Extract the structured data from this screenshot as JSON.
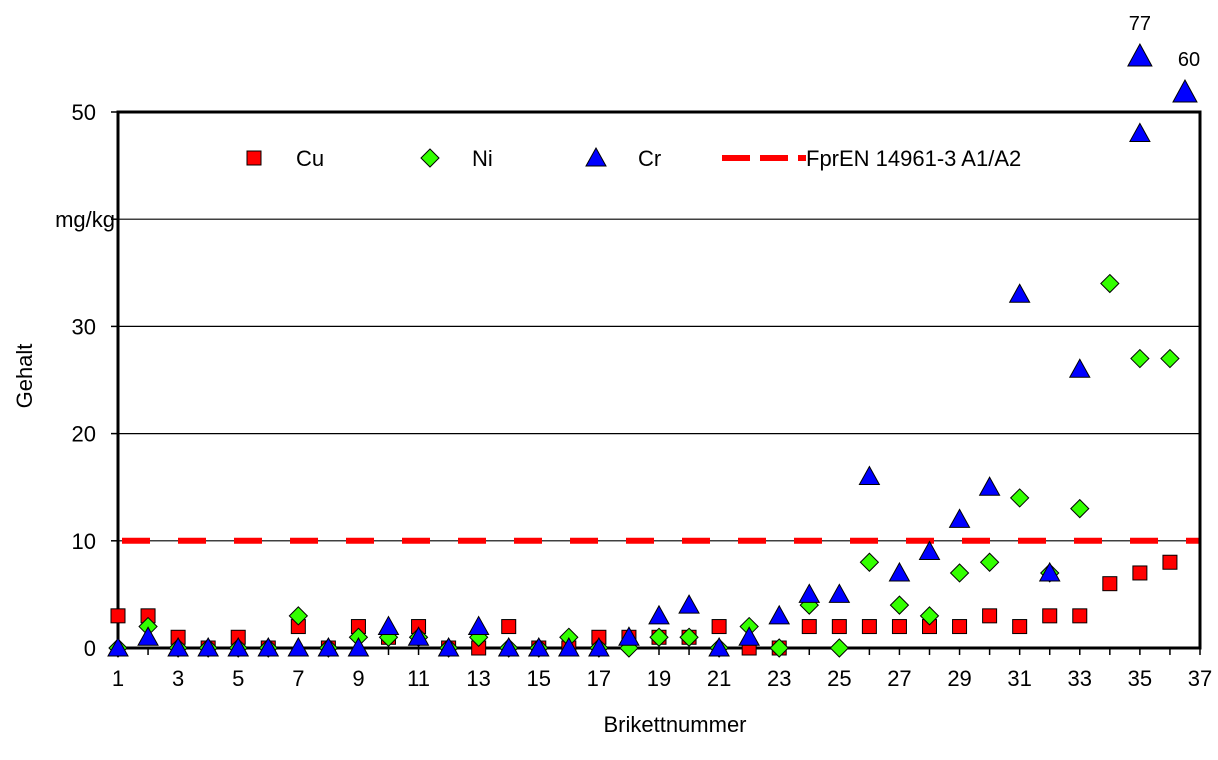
{
  "chart_data": {
    "type": "scatter",
    "title": "",
    "xlabel": "Brikettnummer",
    "ylabel": "Gehalt",
    "y_unit_label": "mg/kg",
    "xlim": [
      1,
      37
    ],
    "ylim": [
      0,
      50
    ],
    "x_ticks": [
      "1",
      "3",
      "5",
      "7",
      "9",
      "11",
      "13",
      "15",
      "17",
      "19",
      "21",
      "23",
      "25",
      "27",
      "29",
      "31",
      "33",
      "35",
      "37"
    ],
    "y_ticks": [
      "0",
      "10",
      "20",
      "30",
      "50"
    ],
    "grid": "horizontal",
    "legend_position": "top",
    "series": [
      {
        "name": "Cu",
        "marker": "square",
        "color": "#ff0000",
        "points": [
          [
            1,
            3
          ],
          [
            2,
            3
          ],
          [
            3,
            1
          ],
          [
            4,
            0
          ],
          [
            5,
            1
          ],
          [
            6,
            0
          ],
          [
            7,
            2
          ],
          [
            8,
            0
          ],
          [
            9,
            2
          ],
          [
            10,
            1
          ],
          [
            11,
            2
          ],
          [
            12,
            0
          ],
          [
            13,
            0
          ],
          [
            14,
            2
          ],
          [
            15,
            0
          ],
          [
            16,
            0
          ],
          [
            17,
            1
          ],
          [
            18,
            1
          ],
          [
            19,
            1
          ],
          [
            20,
            1
          ],
          [
            21,
            2
          ],
          [
            22,
            0
          ],
          [
            23,
            0
          ],
          [
            24,
            2
          ],
          [
            25,
            2
          ],
          [
            26,
            2
          ],
          [
            27,
            2
          ],
          [
            28,
            2
          ],
          [
            29,
            2
          ],
          [
            30,
            3
          ],
          [
            31,
            2
          ],
          [
            32,
            3
          ],
          [
            33,
            3
          ],
          [
            34,
            6
          ],
          [
            35,
            7
          ],
          [
            36,
            8
          ]
        ]
      },
      {
        "name": "Ni",
        "marker": "diamond",
        "color": "#33ff00",
        "points": [
          [
            1,
            0
          ],
          [
            2,
            2
          ],
          [
            3,
            0
          ],
          [
            4,
            0
          ],
          [
            5,
            0
          ],
          [
            6,
            0
          ],
          [
            7,
            3
          ],
          [
            8,
            0
          ],
          [
            9,
            1
          ],
          [
            10,
            1
          ],
          [
            11,
            1
          ],
          [
            12,
            0
          ],
          [
            13,
            1
          ],
          [
            14,
            0
          ],
          [
            15,
            0
          ],
          [
            16,
            1
          ],
          [
            17,
            0
          ],
          [
            18,
            0
          ],
          [
            19,
            1
          ],
          [
            20,
            1
          ],
          [
            21,
            0
          ],
          [
            22,
            2
          ],
          [
            23,
            0
          ],
          [
            24,
            4
          ],
          [
            25,
            0
          ],
          [
            26,
            8
          ],
          [
            27,
            4
          ],
          [
            28,
            3
          ],
          [
            29,
            7
          ],
          [
            30,
            8
          ],
          [
            31,
            14
          ],
          [
            32,
            7
          ],
          [
            33,
            13
          ],
          [
            34,
            34
          ],
          [
            35,
            27
          ],
          [
            36,
            27
          ]
        ]
      },
      {
        "name": "Cr",
        "marker": "triangle",
        "color": "#0000ff",
        "points": [
          [
            1,
            0
          ],
          [
            2,
            1
          ],
          [
            3,
            0
          ],
          [
            4,
            0
          ],
          [
            5,
            0
          ],
          [
            6,
            0
          ],
          [
            7,
            0
          ],
          [
            8,
            0
          ],
          [
            9,
            0
          ],
          [
            10,
            2
          ],
          [
            11,
            1
          ],
          [
            12,
            0
          ],
          [
            13,
            2
          ],
          [
            14,
            0
          ],
          [
            15,
            0
          ],
          [
            16,
            0
          ],
          [
            17,
            0
          ],
          [
            18,
            1
          ],
          [
            19,
            3
          ],
          [
            20,
            4
          ],
          [
            21,
            0
          ],
          [
            22,
            1
          ],
          [
            23,
            3
          ],
          [
            24,
            5
          ],
          [
            25,
            5
          ],
          [
            26,
            16
          ],
          [
            27,
            7
          ],
          [
            28,
            9
          ],
          [
            29,
            12
          ],
          [
            30,
            15
          ],
          [
            31,
            33
          ],
          [
            32,
            7
          ],
          [
            33,
            26
          ],
          [
            35,
            48
          ]
        ],
        "offscale_points": [
          {
            "x": 35,
            "label": "77"
          },
          {
            "x": 36.5,
            "label": "60"
          }
        ]
      },
      {
        "name": "FprEN 14961-3 A1/A2",
        "marker": "dashed-line",
        "color": "#ff0000",
        "value": 10
      }
    ]
  }
}
